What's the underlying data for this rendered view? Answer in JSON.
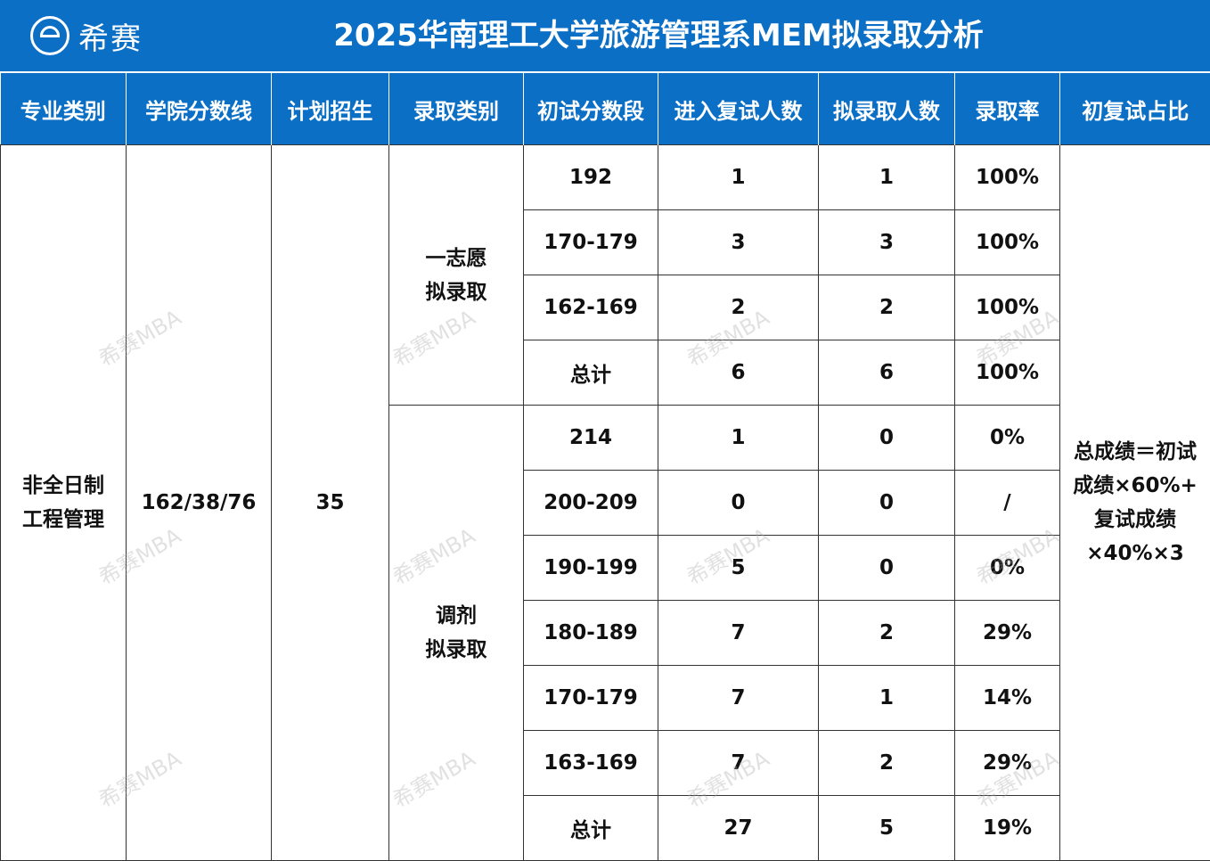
{
  "brand": {
    "name": "希赛"
  },
  "title": "2025华南理工大学旅游管理系MEM拟录取分析",
  "headers": [
    "专业类别",
    "学院分数线",
    "计划招生",
    "录取类别",
    "初试分数段",
    "进入复试人数",
    "拟录取人数",
    "录取率",
    "初复试占比"
  ],
  "program": {
    "major": [
      "非全日制",
      "工程管理"
    ],
    "cutoff": "162/38/76",
    "plan": "35",
    "ratio_note": [
      "总成绩＝初试",
      "成绩×60%+",
      "复试成绩",
      "×40%×3"
    ]
  },
  "groups": [
    {
      "category": [
        "一志愿",
        "拟录取"
      ],
      "rows": [
        {
          "range": "192",
          "retest": "1",
          "admitted": "1",
          "rate": "100%",
          "total": false
        },
        {
          "range": "170-179",
          "retest": "3",
          "admitted": "3",
          "rate": "100%",
          "total": false
        },
        {
          "range": "162-169",
          "retest": "2",
          "admitted": "2",
          "rate": "100%",
          "total": false
        },
        {
          "range": "总计",
          "retest": "6",
          "admitted": "6",
          "rate": "100%",
          "total": true
        }
      ]
    },
    {
      "category": [
        "调剂",
        "拟录取"
      ],
      "rows": [
        {
          "range": "214",
          "retest": "1",
          "admitted": "0",
          "rate": "0%",
          "total": false
        },
        {
          "range": "200-209",
          "retest": "0",
          "admitted": "0",
          "rate": "/",
          "total": false
        },
        {
          "range": "190-199",
          "retest": "5",
          "admitted": "0",
          "rate": "0%",
          "total": false
        },
        {
          "range": "180-189",
          "retest": "7",
          "admitted": "2",
          "rate": "29%",
          "total": false
        },
        {
          "range": "170-179",
          "retest": "7",
          "admitted": "1",
          "rate": "14%",
          "total": false
        },
        {
          "range": "163-169",
          "retest": "7",
          "admitted": "2",
          "rate": "29%",
          "total": false
        },
        {
          "range": "总计",
          "retest": "27",
          "admitted": "5",
          "rate": "19%",
          "total": true
        }
      ]
    }
  ],
  "watermark": "希赛MBA",
  "colors": {
    "header_bg": "#0b6fc6",
    "total_text": "#e8100f",
    "border": "#333333"
  }
}
